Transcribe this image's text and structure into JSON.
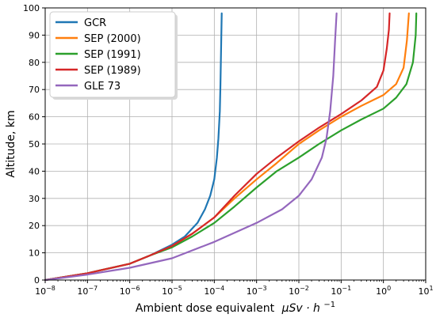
{
  "chart_data": {
    "type": "line",
    "title": "",
    "xlabel": "Ambient dose equivalent",
    "xlabel_math": "μSv · h",
    "xlabel_exp": "−1",
    "ylabel": "Altitude, km",
    "xscale": "log",
    "xlim": [
      1e-08,
      10
    ],
    "ylim": [
      0,
      100
    ],
    "x_ticks": [
      {
        "b": "10",
        "e": "−8"
      },
      {
        "b": "10",
        "e": "−7"
      },
      {
        "b": "10",
        "e": "−6"
      },
      {
        "b": "10",
        "e": "−5"
      },
      {
        "b": "10",
        "e": "−4"
      },
      {
        "b": "10",
        "e": "−3"
      },
      {
        "b": "10",
        "e": "−2"
      },
      {
        "b": "10",
        "e": "−1"
      },
      {
        "b": "10",
        "e": "0"
      },
      {
        "b": "10",
        "e": "1"
      }
    ],
    "y_ticks": [
      "0",
      "10",
      "20",
      "30",
      "40",
      "50",
      "60",
      "70",
      "80",
      "90",
      "100"
    ],
    "grid": true,
    "legend_position": "top-left",
    "series": [
      {
        "name": "GCR",
        "color": "#1f77b4",
        "x": [
          1e-08,
          1e-07,
          1e-06,
          3e-06,
          1e-05,
          2e-05,
          4e-05,
          6e-05,
          8e-05,
          0.0001,
          0.000115,
          0.000125,
          0.000135,
          0.00014,
          0.000145,
          0.00015
        ],
        "y": [
          0,
          2.5,
          6,
          9,
          13,
          16,
          21,
          26,
          31,
          37,
          45,
          52,
          62,
          72,
          85,
          98
        ]
      },
      {
        "name": "SEP (2000)",
        "color": "#ff7f0e",
        "x": [
          1e-08,
          1e-07,
          1e-06,
          3e-06,
          1e-05,
          3e-05,
          0.0001,
          0.0003,
          0.001,
          0.003,
          0.01,
          0.03,
          0.1,
          0.3,
          1.0,
          2.0,
          3.0,
          3.6,
          4.0
        ],
        "y": [
          0,
          2.5,
          6,
          9,
          12.5,
          17,
          23,
          30,
          37,
          43,
          50,
          55,
          60,
          64,
          68,
          72,
          78,
          88,
          98
        ]
      },
      {
        "name": "SEP (1991)",
        "color": "#2ca02c",
        "x": [
          1e-08,
          1e-07,
          1e-06,
          3e-06,
          1e-05,
          3e-05,
          0.0001,
          0.0003,
          0.001,
          0.003,
          0.01,
          0.03,
          0.1,
          0.3,
          1.0,
          2.0,
          3.5,
          5.0,
          5.8,
          6.0
        ],
        "y": [
          0,
          2.5,
          6,
          9,
          12,
          16,
          21,
          27,
          34,
          40,
          45,
          50,
          55,
          59,
          63,
          67,
          72,
          80,
          90,
          98
        ]
      },
      {
        "name": "SEP (1989)",
        "color": "#d62728",
        "x": [
          1e-08,
          1e-07,
          1e-06,
          3e-06,
          1e-05,
          3e-05,
          0.0001,
          0.0003,
          0.001,
          0.003,
          0.01,
          0.03,
          0.1,
          0.3,
          0.7,
          1.0,
          1.2,
          1.35,
          1.4
        ],
        "y": [
          0,
          2.5,
          6,
          9,
          12.5,
          17,
          23,
          31,
          39,
          45,
          51,
          56,
          61,
          66,
          71,
          77,
          85,
          92,
          98
        ]
      },
      {
        "name": "GLE 73",
        "color": "#9467bd",
        "x": [
          1e-08,
          1e-07,
          1e-06,
          1e-05,
          0.0001,
          0.001,
          0.004,
          0.01,
          0.02,
          0.035,
          0.045,
          0.055,
          0.065,
          0.072,
          0.078
        ],
        "y": [
          0,
          2,
          4.5,
          8,
          14,
          21,
          26,
          31,
          37,
          45,
          52,
          62,
          75,
          88,
          98
        ]
      }
    ]
  }
}
